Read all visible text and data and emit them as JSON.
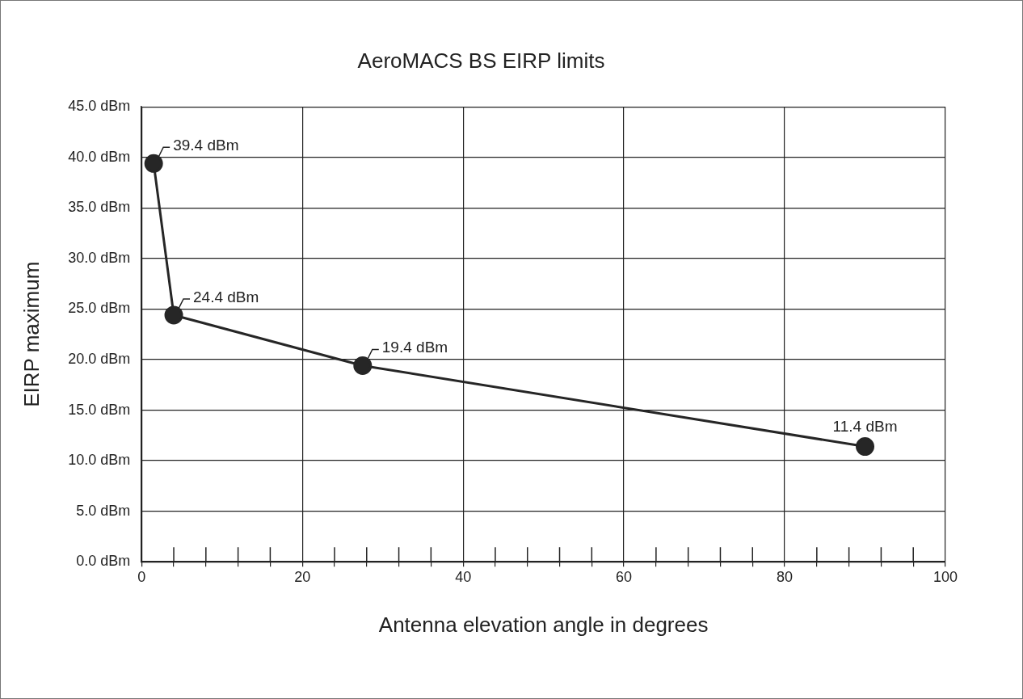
{
  "chart_data": {
    "type": "line",
    "title": "AeroMACS BS EIRP limits",
    "xlabel": "Antenna elevation angle in degrees",
    "ylabel": "EIRP maximum",
    "x": [
      1.5,
      4,
      27.5,
      90
    ],
    "series": [
      {
        "color": "#262626",
        "values": [
          39.4,
          24.4,
          19.4,
          11.4
        ]
      }
    ],
    "annotations": [
      {
        "text": "39.4 dBm",
        "x": 1.5,
        "y": 39.4
      },
      {
        "text": "24.4 dBm",
        "x": 4,
        "y": 24.4
      },
      {
        "text": "19.4 dBm",
        "x": 27.5,
        "y": 19.4
      },
      {
        "text": "11.4 dBm",
        "x": 90,
        "y": 11.4
      }
    ],
    "xlim": [
      0,
      100
    ],
    "xticks": [
      0,
      {
        "value": 4,
        "label": null
      },
      {
        "value": 8,
        "label": null
      },
      {
        "value": 12,
        "label": null
      },
      {
        "value": 16,
        "label": null
      },
      20,
      {
        "value": 24,
        "label": null
      },
      {
        "value": 28,
        "label": null
      },
      {
        "value": 32,
        "label": null
      },
      {
        "value": 36,
        "label": null
      },
      40,
      {
        "value": 44,
        "label": null
      },
      {
        "value": 48,
        "label": null
      },
      {
        "value": 52,
        "label": null
      },
      {
        "value": 56,
        "label": null
      },
      60,
      {
        "value": 64,
        "label": null
      },
      {
        "value": 68,
        "label": null
      },
      {
        "value": 72,
        "label": null
      },
      {
        "value": 76,
        "label": null
      },
      80,
      {
        "value": 84,
        "label": null
      },
      {
        "value": 88,
        "label": null
      },
      {
        "value": 92,
        "label": null
      },
      {
        "value": 96,
        "label": null
      },
      100
    ],
    "ylim": [
      0,
      45
    ],
    "yticks": [
      {
        "value": 0,
        "label": "0.0 dBm"
      },
      {
        "value": 5,
        "label": "5.0 dBm"
      },
      {
        "value": 10,
        "label": "10.0 dBm"
      },
      {
        "value": 15,
        "label": "15.0 dBm"
      },
      {
        "value": 20,
        "label": "20.0 dBm"
      },
      {
        "value": 25,
        "label": "25.0 dBm"
      },
      {
        "value": 30,
        "label": "30.0 dBm"
      },
      {
        "value": 35,
        "label": "35.0 dBm"
      },
      {
        "value": 40,
        "label": "40.0 dBm"
      },
      {
        "value": 45,
        "label": "45.0 dBm"
      }
    ],
    "grid": true,
    "legend": false,
    "marker": "circle",
    "line_style": "solid"
  }
}
